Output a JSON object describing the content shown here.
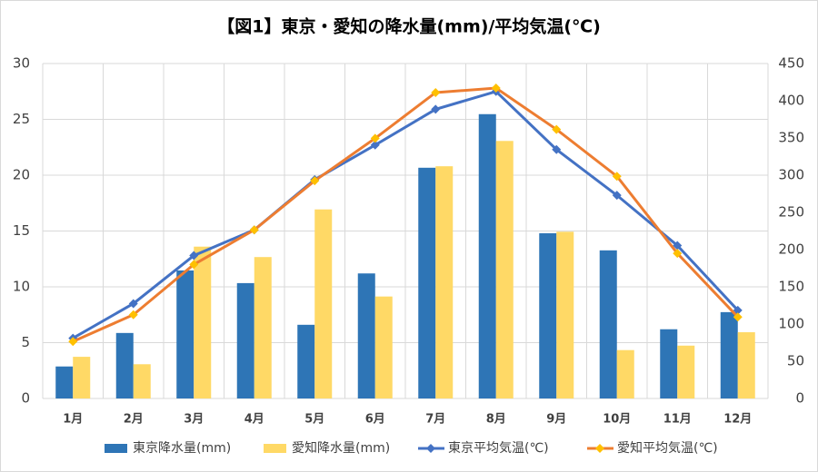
{
  "chart_data": {
    "type": "combo",
    "title": "【図1】東京・愛知の降水量(mm)/平均気温(℃)",
    "categories": [
      "1月",
      "2月",
      "3月",
      "4月",
      "5月",
      "6月",
      "7月",
      "8月",
      "9月",
      "10月",
      "11月",
      "12月"
    ],
    "ylim": [
      0,
      30
    ],
    "yticks": [
      0,
      5,
      10,
      15,
      20,
      25,
      30
    ],
    "y2lim": [
      0,
      450
    ],
    "y2ticks": [
      0,
      50,
      100,
      150,
      200,
      250,
      300,
      350,
      400,
      450
    ],
    "grid": true,
    "series": [
      {
        "name": "東京降水量(mm)",
        "type": "bar",
        "axis": "y2",
        "color": "#2e75b6",
        "values": [
          43,
          88,
          172,
          155,
          99,
          168,
          310,
          382,
          222,
          199,
          93,
          116
        ]
      },
      {
        "name": "愛知降水量(mm)",
        "type": "bar",
        "axis": "y2",
        "color": "#ffd966",
        "values": [
          56,
          46,
          204,
          190,
          254,
          137,
          312,
          346,
          224,
          65,
          71,
          89
        ]
      },
      {
        "name": "東京平均気温(℃)",
        "type": "line",
        "color": "#4472c4",
        "marker_color": "#4472c4",
        "values": [
          5.4,
          8.5,
          12.8,
          15.1,
          19.6,
          22.7,
          25.9,
          27.5,
          22.3,
          18.2,
          13.7,
          7.9
        ]
      },
      {
        "name": "愛知平均気温(℃)",
        "type": "line",
        "color": "#ed7d31",
        "marker_color": "#ffc000",
        "values": [
          5.1,
          7.5,
          12.0,
          15.1,
          19.5,
          23.3,
          27.4,
          27.8,
          24.1,
          19.9,
          13.0,
          7.3
        ]
      }
    ]
  }
}
